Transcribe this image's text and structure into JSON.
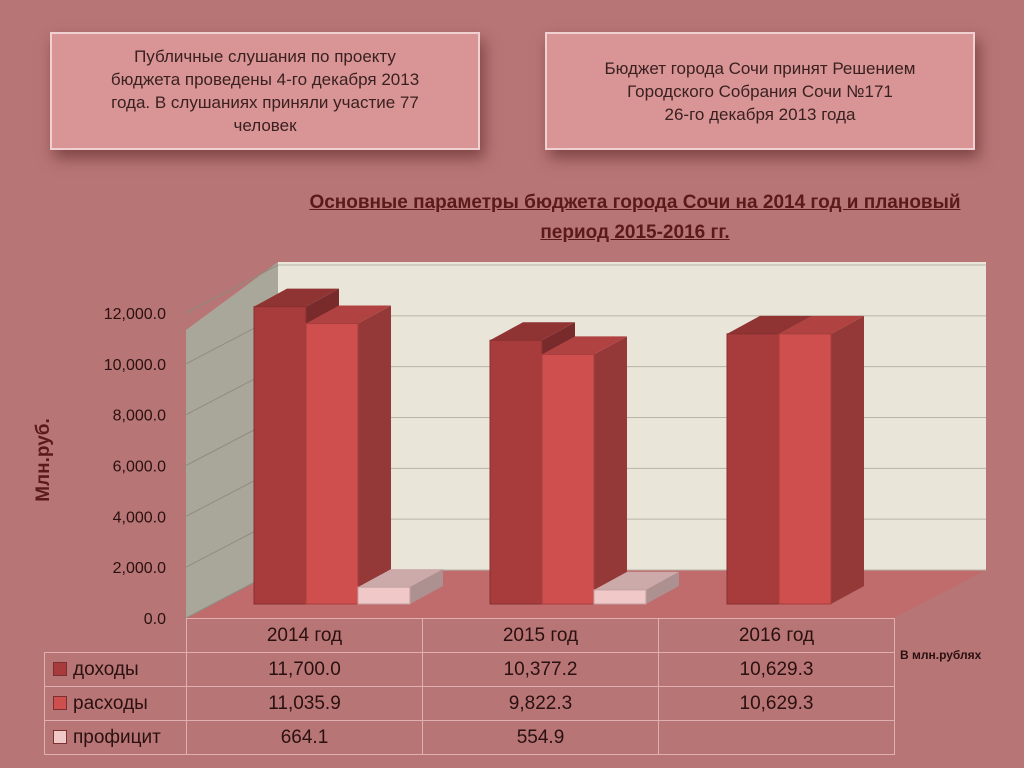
{
  "boxes": {
    "left": "Публичные слушания по проекту\nбюджета проведены 4-го декабря 2013\nгода. В слушаниях приняли участие 77\nчеловек",
    "right": "Бюджет города Сочи принят Решением\nГородского Собрания Сочи №171\n26-го декабря 2013 года"
  },
  "unit_note": "В млн.рублях",
  "chart_data": {
    "type": "bar",
    "title": "Основные параметры  бюджета города Сочи на 2014 год и плановый\nпериод 2015-2016 гг.",
    "ylabel": "Млн.руб.",
    "xlabel": "",
    "categories": [
      "2014 год",
      "2015 год",
      "2016 год"
    ],
    "ylim": [
      0,
      12000
    ],
    "yticks": [
      "0.0",
      "2,000.0",
      "4,000.0",
      "6,000.0",
      "8,000.0",
      "10,000.0",
      "12,000.0"
    ],
    "grid": true,
    "legend": "table-below",
    "series": [
      {
        "name": "доходы",
        "values": [
          11700.0,
          10377.2,
          10629.3
        ],
        "labels": [
          "11,700.0",
          "10,377.2",
          "10,629.3"
        ],
        "color": "#a83c3c"
      },
      {
        "name": "расходы",
        "values": [
          11035.9,
          9822.3,
          10629.3
        ],
        "labels": [
          "11,035.9",
          "9,822.3",
          "10,629.3"
        ],
        "color": "#cf4e4e"
      },
      {
        "name": "профицит",
        "values": [
          664.1,
          554.9,
          null
        ],
        "labels": [
          "664.1",
          "554.9",
          ""
        ],
        "color": "#f0c8c8"
      }
    ]
  }
}
